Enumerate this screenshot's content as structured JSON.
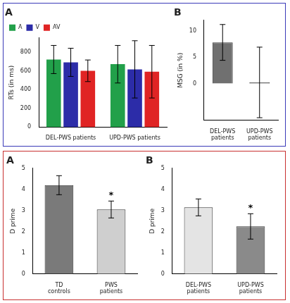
{
  "chart_data": [
    {
      "type": "bar",
      "title": "A",
      "categories": [
        "DEL-PWS patients",
        "UPD-PWS patients"
      ],
      "series": [
        {
          "name": "A",
          "color": "#22a04a",
          "values": [
            720,
            670
          ],
          "errors": [
            150,
            200
          ]
        },
        {
          "name": "V",
          "color": "#2c2ca8",
          "values": [
            690,
            615
          ],
          "errors": [
            150,
            305
          ]
        },
        {
          "name": "AV",
          "color": "#e02424",
          "values": [
            600,
            590
          ],
          "errors": [
            115,
            280
          ]
        }
      ],
      "ylabel": "RTs (in ms)",
      "ylim": [
        0,
        950
      ],
      "yticks": [
        0,
        200,
        400,
        600,
        800
      ],
      "grid": false,
      "legend": "upper left"
    },
    {
      "type": "bar",
      "title": "B",
      "categories": [
        "DEL-PWS patients",
        "UPD-PWS patients"
      ],
      "values": [
        7.8,
        0.2
      ],
      "errors": [
        3.4,
        6.7
      ],
      "colors": [
        "#707070",
        "#707070"
      ],
      "ylabel": "MSG (in %)",
      "ylim": [
        -7,
        12
      ],
      "yticks": [
        0,
        5,
        10
      ],
      "grid": false
    },
    {
      "type": "bar",
      "title": "A",
      "categories": [
        "TD controls",
        "PWS patients"
      ],
      "values": [
        4.2,
        3.05
      ],
      "errors": [
        0.45,
        0.4
      ],
      "colors": [
        "#7a7a7a",
        "#cfcfcf"
      ],
      "annotations": [
        {
          "category": "PWS patients",
          "text": "*"
        }
      ],
      "ylabel": "D prime",
      "ylim": [
        0,
        5
      ],
      "yticks": [
        0,
        1,
        2,
        3,
        4,
        5
      ],
      "grid": false
    },
    {
      "type": "bar",
      "title": "B",
      "categories": [
        "DEL-PWS patients",
        "UPD-PWS patients"
      ],
      "values": [
        3.15,
        2.25
      ],
      "errors": [
        0.4,
        0.6
      ],
      "colors": [
        "#e4e4e4",
        "#8a8a8a"
      ],
      "annotations": [
        {
          "category": "UPD-PWS patients",
          "text": "*"
        }
      ],
      "ylabel": "D prime",
      "ylim": [
        0,
        5
      ],
      "yticks": [
        0,
        1,
        2,
        3,
        4,
        5
      ],
      "grid": false
    }
  ]
}
